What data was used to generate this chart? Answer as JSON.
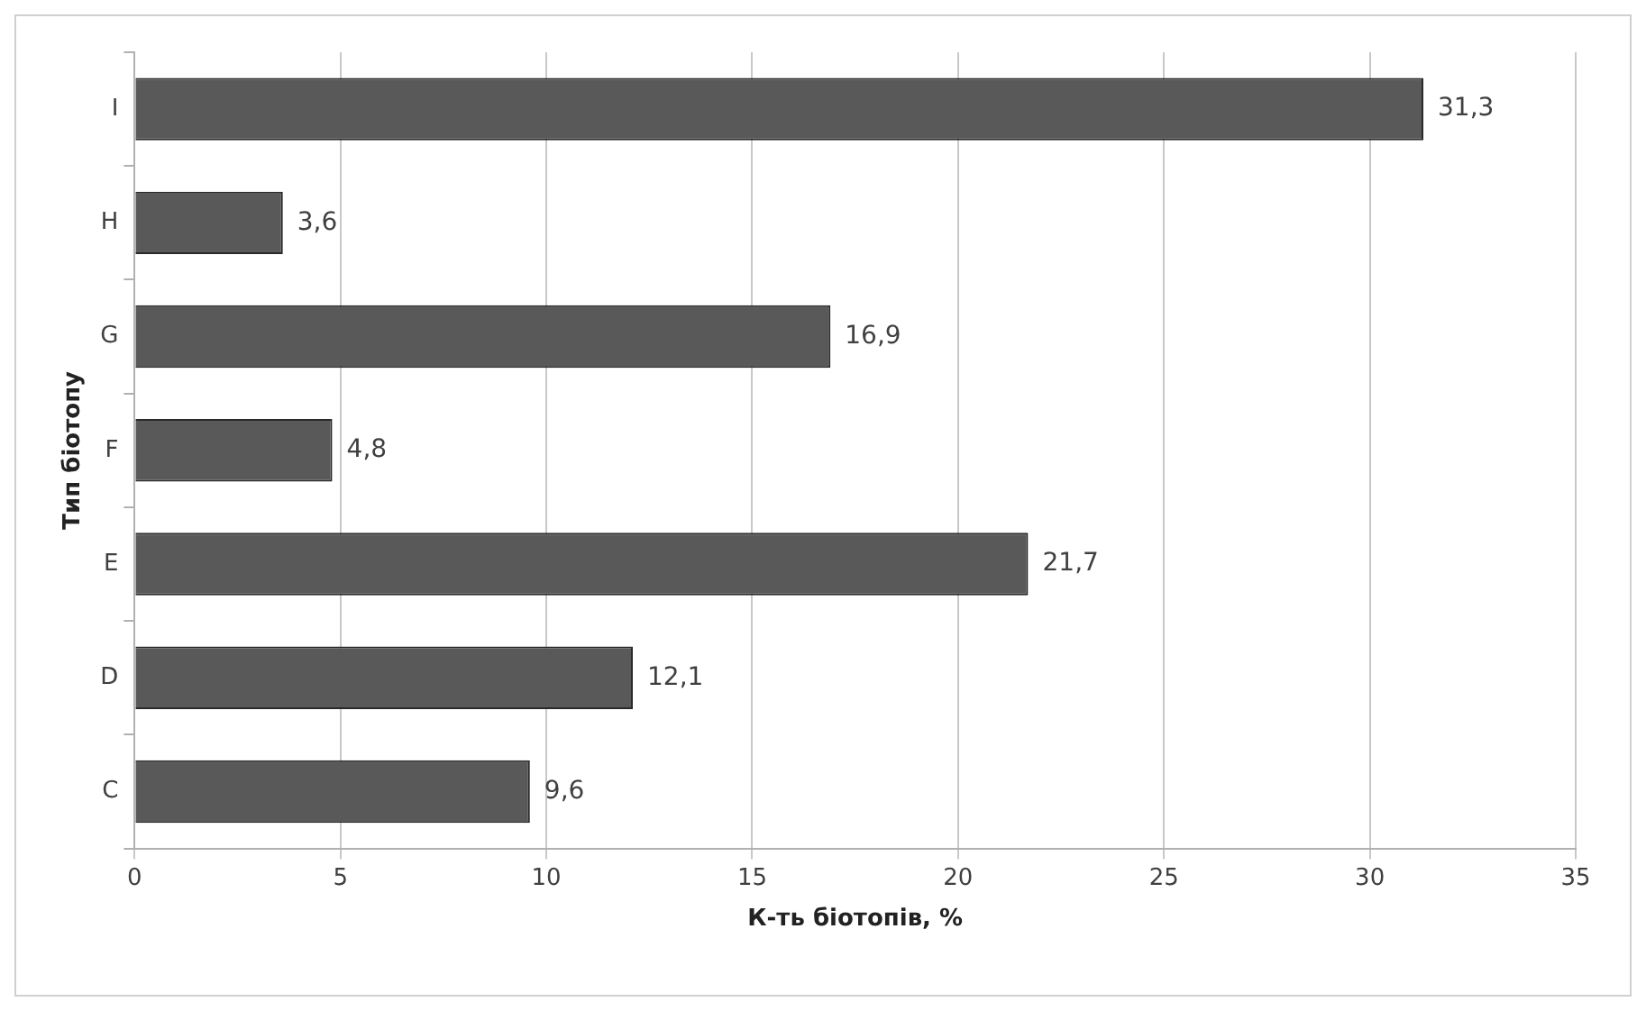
{
  "chart_data": {
    "type": "bar",
    "orientation": "horizontal",
    "xlabel": "К-ть біотопів, %",
    "ylabel": "Тип біотопу",
    "categories": [
      "I",
      "H",
      "G",
      "F",
      "E",
      "D",
      "C"
    ],
    "values": [
      31.3,
      3.6,
      16.9,
      4.8,
      21.7,
      12.1,
      9.6
    ],
    "value_labels": [
      "31,3",
      "3,6",
      "16,9",
      "4,8",
      "21,7",
      "12,1",
      "9,6"
    ],
    "color": "#595959",
    "xlim": [
      0,
      35
    ],
    "xticks": [
      0,
      5,
      10,
      15,
      20,
      25,
      30,
      35
    ],
    "grid": "x",
    "legend": false
  }
}
